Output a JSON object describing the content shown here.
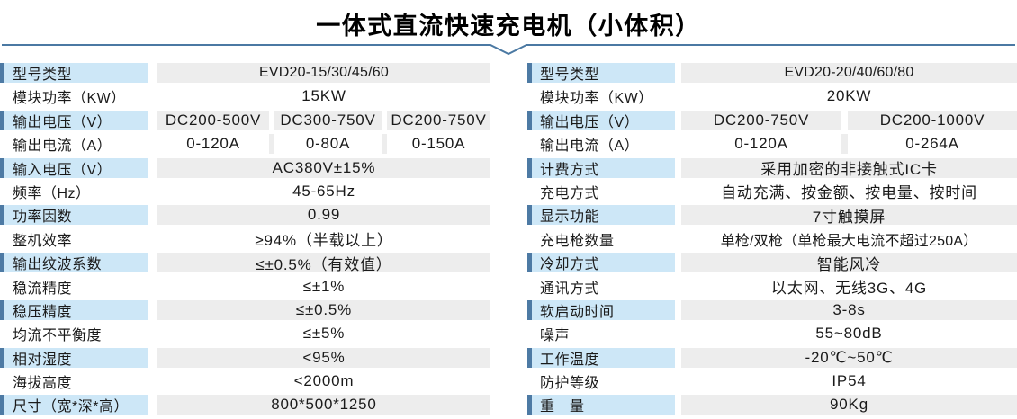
{
  "title": "一体式直流快速充电机（小体积）",
  "colors": {
    "label_bg": "#cde7f7",
    "accent_bar": "#4d7aa4",
    "value_bg": "#ededed",
    "divider_line": "#4b79a3",
    "text": "#1a1a1a"
  },
  "left_table": {
    "rows": [
      {
        "label": "型号类型",
        "values": [
          "EVD20-15/30/45/60"
        ],
        "shaded": true
      },
      {
        "label": "模块功率（KW）",
        "values": [
          "15KW"
        ],
        "shaded": false
      },
      {
        "label": "输出电压（V）",
        "values": [
          "DC200-500V",
          "DC300-750V",
          "DC200-750V"
        ],
        "shaded": true
      },
      {
        "label": "输出电流（A）",
        "values": [
          "0-120A",
          "0-80A",
          "0-150A"
        ],
        "shaded": false
      },
      {
        "label": "输入电压（V）",
        "values": [
          "AC380V±15%"
        ],
        "shaded": true
      },
      {
        "label": "频率（Hz）",
        "values": [
          "45-65Hz"
        ],
        "shaded": false
      },
      {
        "label": "功率因数",
        "values": [
          "0.99"
        ],
        "shaded": true
      },
      {
        "label": "整机效率",
        "values": [
          "≥94%（半载以上）"
        ],
        "shaded": false
      },
      {
        "label": "输出纹波系数",
        "values": [
          "≤±0.5%（有效值）"
        ],
        "shaded": true
      },
      {
        "label": "稳流精度",
        "values": [
          "≤±1%"
        ],
        "shaded": false
      },
      {
        "label": "稳压精度",
        "values": [
          "≤±0.5%"
        ],
        "shaded": true
      },
      {
        "label": "均流不平衡度",
        "values": [
          "≤±5%"
        ],
        "shaded": false
      },
      {
        "label": "相对湿度",
        "values": [
          "<95%"
        ],
        "shaded": true
      },
      {
        "label": "海拔高度",
        "values": [
          "<2000m"
        ],
        "shaded": false
      },
      {
        "label": "尺寸（宽*深*高）",
        "values": [
          "800*500*1250"
        ],
        "shaded": true
      }
    ]
  },
  "right_table": {
    "rows": [
      {
        "label": "型号类型",
        "values": [
          "EVD20-20/40/60/80"
        ],
        "shaded": true
      },
      {
        "label": "模块功率（KW）",
        "values": [
          "20KW"
        ],
        "shaded": false
      },
      {
        "label": "输出电压（V）",
        "values": [
          "DC200-750V",
          "DC200-1000V"
        ],
        "shaded": true
      },
      {
        "label": "输出电流（A）",
        "values": [
          "0-120A",
          "0-264A"
        ],
        "shaded": false
      },
      {
        "label": "计费方式",
        "values": [
          "采用加密的非接触式IC卡"
        ],
        "shaded": true
      },
      {
        "label": "充电方式",
        "values": [
          "自动充满、按金额、按电量、按时间"
        ],
        "shaded": false
      },
      {
        "label": "显示功能",
        "values": [
          "7寸触摸屏"
        ],
        "shaded": true
      },
      {
        "label": "充电枪数量",
        "values": [
          "单枪/双枪（单枪最大电流不超过250A）"
        ],
        "shaded": false
      },
      {
        "label": "冷却方式",
        "values": [
          "智能风冷"
        ],
        "shaded": true
      },
      {
        "label": "通讯方式",
        "values": [
          "以太网、无线3G、4G"
        ],
        "shaded": false
      },
      {
        "label": "软启动时间",
        "values": [
          "3-8s"
        ],
        "shaded": true
      },
      {
        "label": "噪声",
        "values": [
          "55~80dB"
        ],
        "shaded": false
      },
      {
        "label": "工作温度",
        "values": [
          "-20℃~50℃"
        ],
        "shaded": true
      },
      {
        "label": "防护等级",
        "values": [
          "IP54"
        ],
        "shaded": false
      },
      {
        "label": "重　量",
        "values": [
          "90Kg"
        ],
        "shaded": true
      }
    ]
  }
}
